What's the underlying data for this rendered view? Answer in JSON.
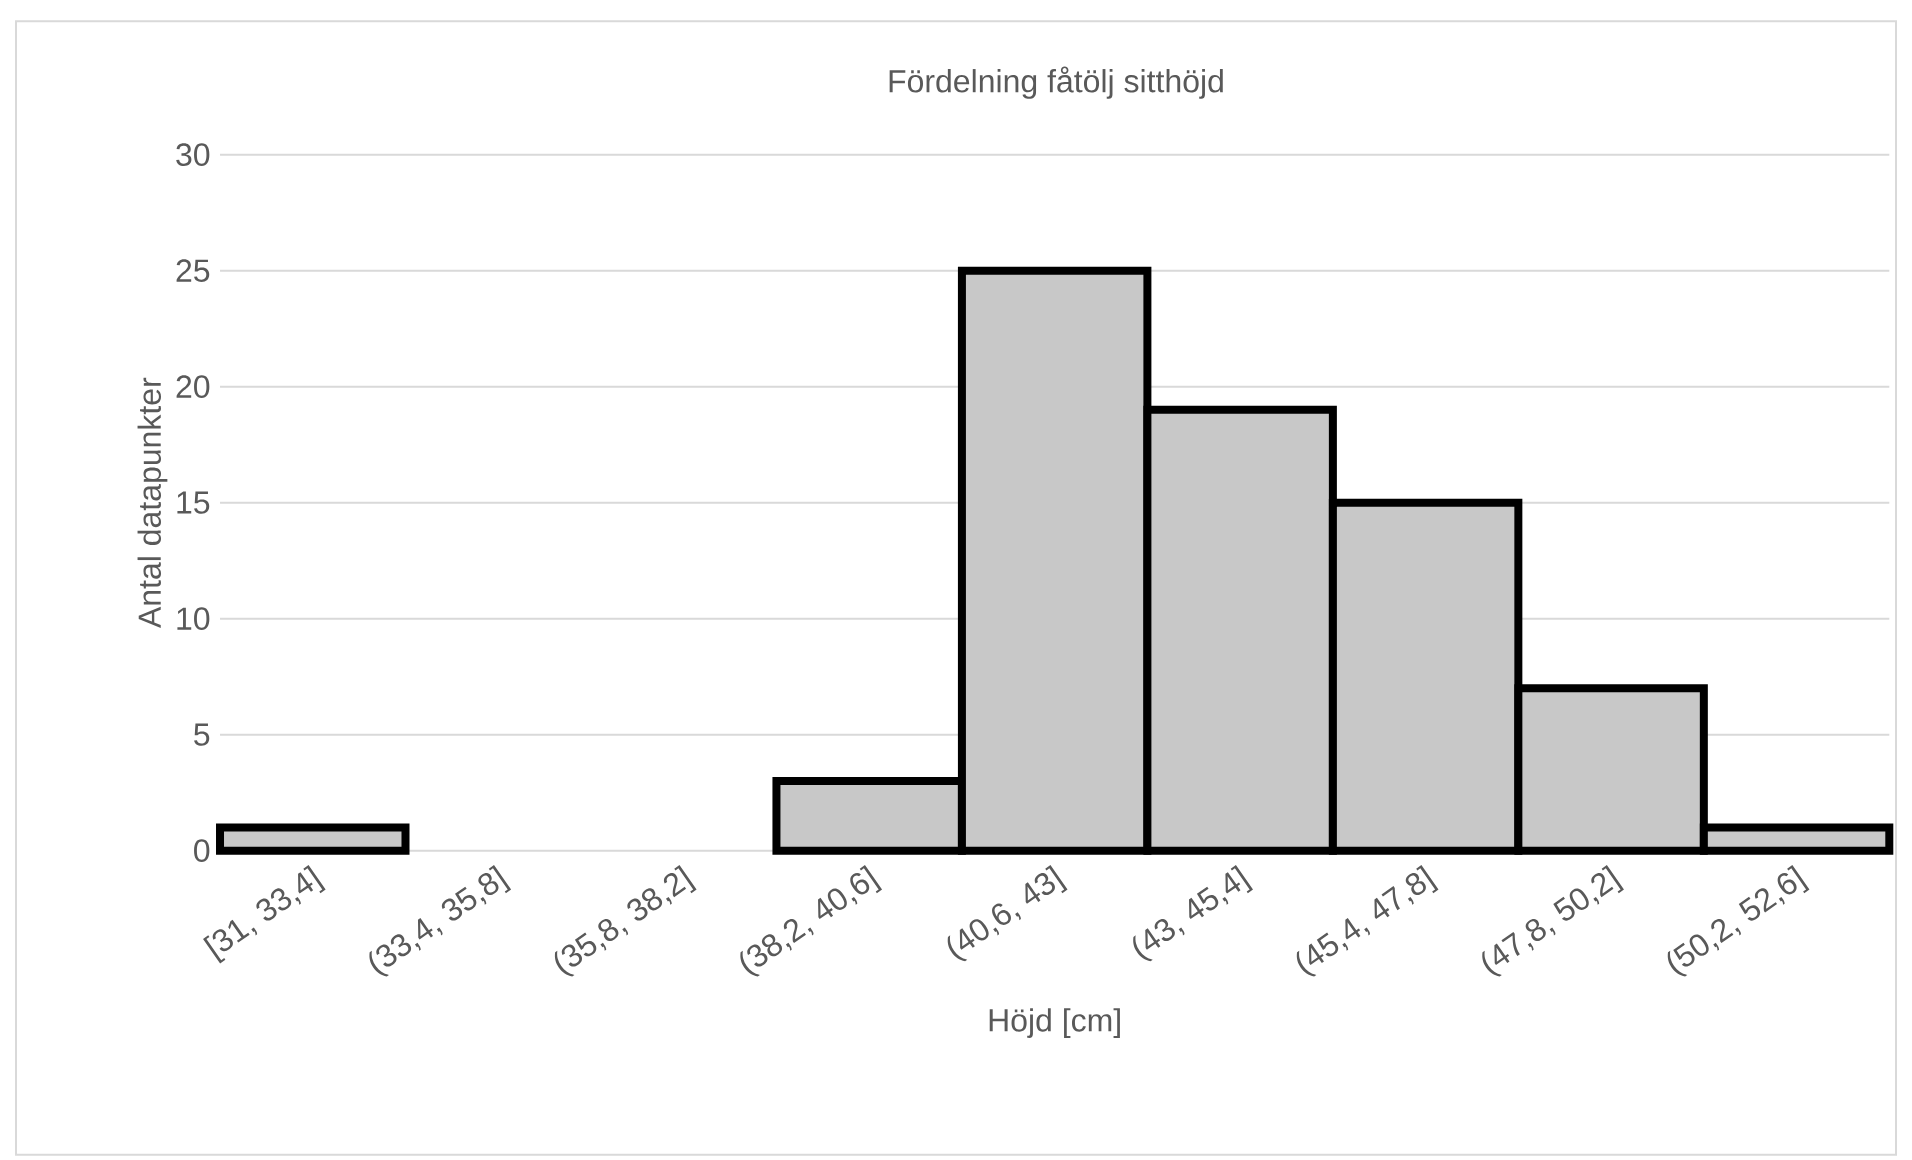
{
  "chart_data": {
    "type": "bar",
    "title": "Fördelning fåtölj sitthöjd",
    "xlabel": "Höjd [cm]",
    "ylabel": "Antal datapunkter",
    "categories": [
      "[31, 33,4]",
      "(33,4, 35,8]",
      "(35,8, 38,2]",
      "(38,2, 40,6]",
      "(40,6, 43]",
      "(43, 45,4]",
      "(45,4, 47,8]",
      "(47,8, 50,2]",
      "(50,2, 52,6]"
    ],
    "values": [
      1,
      0,
      0,
      3,
      25,
      19,
      15,
      7,
      1
    ],
    "color": "#c8c8c8",
    "ylim": [
      0,
      30
    ],
    "yticks": [
      0,
      5,
      10,
      15,
      20,
      25,
      30
    ],
    "grid": "y"
  }
}
